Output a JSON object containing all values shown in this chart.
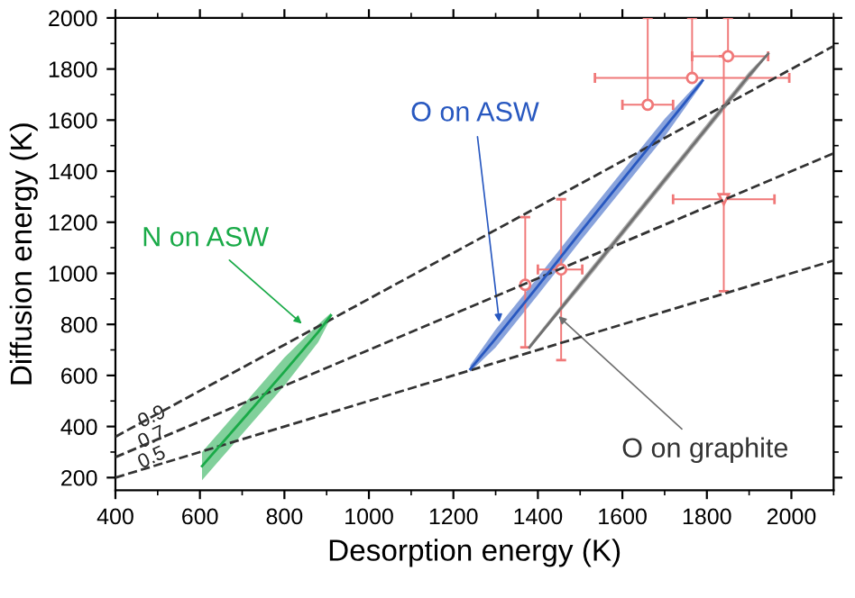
{
  "chart_data": {
    "type": "scatter",
    "xlabel": "Desorption energy (K)",
    "ylabel": "Diffusion energy (K)",
    "xlim": [
      400,
      2100
    ],
    "ylim": [
      150,
      2000
    ],
    "xticks": [
      400,
      600,
      800,
      1000,
      1200,
      1400,
      1600,
      1800,
      2000
    ],
    "yticks": [
      200,
      400,
      600,
      800,
      1000,
      1200,
      1400,
      1600,
      1800,
      2000
    ],
    "grid": false,
    "legend": false,
    "series": [
      {
        "name": "0.9",
        "type": "line",
        "line_style": "dashed",
        "marker": "none",
        "color": "#333333",
        "x": [
          400,
          2100
        ],
        "values": [
          360,
          1890
        ]
      },
      {
        "name": "0.7",
        "type": "line",
        "line_style": "dashed",
        "marker": "none",
        "color": "#333333",
        "x": [
          400,
          2100
        ],
        "values": [
          280,
          1470
        ]
      },
      {
        "name": "0.5",
        "type": "line",
        "line_style": "dashed",
        "marker": "none",
        "color": "#333333",
        "x": [
          400,
          2100
        ],
        "values": [
          200,
          1050
        ]
      },
      {
        "type": "line",
        "line_style": "solid",
        "marker": "none",
        "color": "#1aaa48",
        "x": [
          605,
          700,
          800,
          880,
          910
        ],
        "values": [
          245,
          425,
          615,
          770,
          835
        ],
        "lower": [
          190,
          370,
          560,
          730,
          825
        ],
        "upper": [
          300,
          480,
          670,
          800,
          845
        ]
      },
      {
        "type": "line",
        "line_style": "solid",
        "marker": "none",
        "color": "#2858c0",
        "x": [
          1240,
          1300,
          1400,
          1500,
          1600,
          1700,
          1790
        ],
        "values": [
          625,
          745,
          950,
          1160,
          1365,
          1570,
          1755
        ],
        "lower": [
          615,
          710,
          915,
          1125,
          1330,
          1535,
          1745
        ],
        "upper": [
          640,
          780,
          985,
          1195,
          1400,
          1605,
          1765
        ]
      },
      {
        "type": "line",
        "line_style": "solid",
        "marker": "none",
        "color": "#707070",
        "x": [
          1380,
          1500,
          1600,
          1700,
          1800,
          1900,
          1945
        ],
        "values": [
          710,
          955,
          1160,
          1365,
          1570,
          1775,
          1860
        ],
        "lower": [
          705,
          940,
          1145,
          1350,
          1555,
          1760,
          1855
        ],
        "upper": [
          720,
          970,
          1175,
          1380,
          1585,
          1790,
          1865
        ]
      },
      {
        "marker": "circle",
        "color": "#f07878",
        "x": [
          1370,
          1455,
          1660,
          1765,
          1850
        ],
        "values": [
          955,
          1015,
          1660,
          1765,
          1850
        ],
        "errors": [
          [
            710,
            1220
          ],
          [
            660,
            1290
          ],
          [
            1660,
            2000
          ],
          [
            1765,
            2000
          ],
          [
            1850,
            2000
          ]
        ],
        "xerrors": [
          null,
          [
            1400,
            1505
          ],
          [
            1600,
            1720
          ],
          [
            1535,
            1995
          ],
          [
            1765,
            1945
          ]
        ]
      },
      {
        "marker": "triangle",
        "color": "#f07878",
        "x": [
          1840
        ],
        "values": [
          1290
        ],
        "errors": [
          [
            930,
            1850
          ]
        ],
        "xerrors": [
          [
            1720,
            1960
          ]
        ]
      }
    ],
    "annotations": [
      {
        "text": "N on ASW",
        "x": 850,
        "y": 790
      },
      {
        "text": "O on ASW",
        "x": 1310,
        "y": 790
      },
      {
        "text": "O on graphite",
        "x": 1440,
        "y": 845
      }
    ]
  }
}
